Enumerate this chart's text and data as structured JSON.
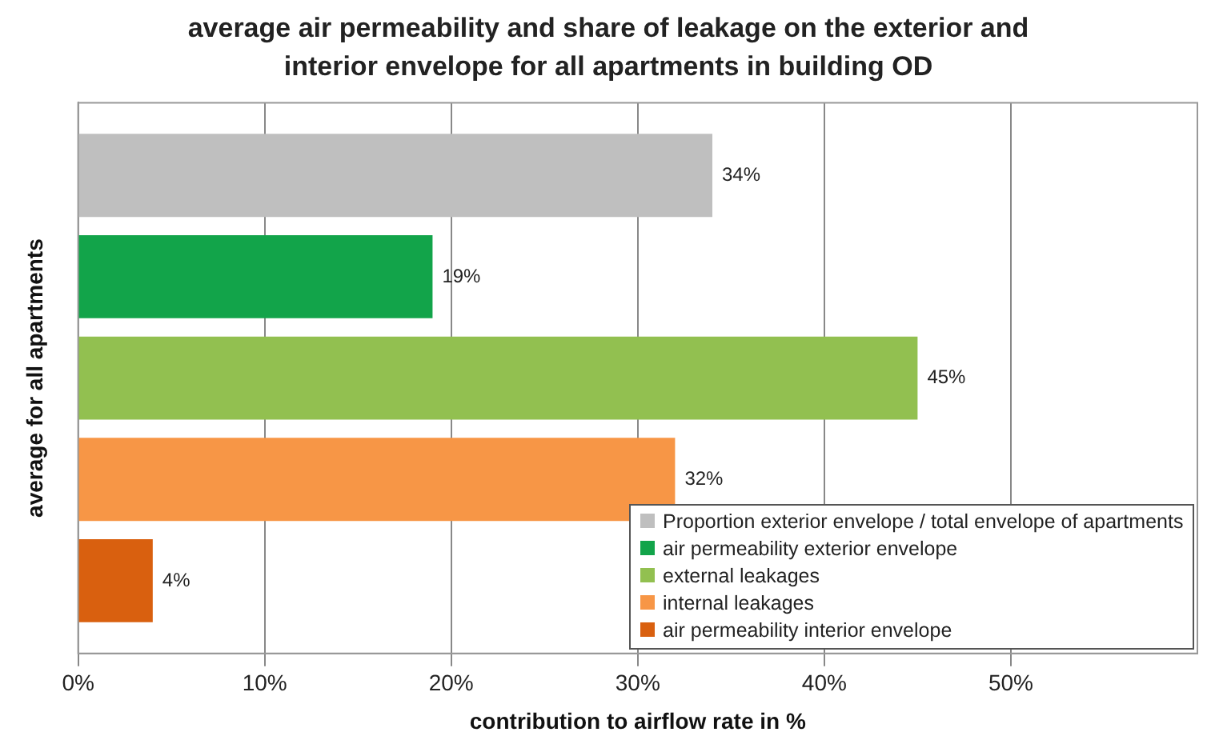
{
  "chart_data": {
    "type": "bar",
    "orientation": "horizontal",
    "title": "average air permeability and share of leakage on the exterior and interior envelope for all apartments in building OD",
    "xlabel": "contribution to airflow rate in %",
    "ylabel": "average for all apartments",
    "categories": [
      null
    ],
    "series": [
      {
        "name": "Proportion exterior envelope / total envelope of apartments",
        "color": "#bfbfbf",
        "values": [
          34
        ],
        "value_labels": [
          "34%"
        ]
      },
      {
        "name": "air permeability exterior envelope",
        "color": "#12a44a",
        "values": [
          19
        ],
        "value_labels": [
          "19%"
        ]
      },
      {
        "name": "external leakages",
        "color": "#92c050",
        "values": [
          45
        ],
        "value_labels": [
          "45%"
        ]
      },
      {
        "name": "internal leakages",
        "color": "#f79646",
        "values": [
          32
        ],
        "value_labels": [
          "32%"
        ]
      },
      {
        "name": "air permeability interior envelope",
        "color": "#d9600f",
        "values": [
          4
        ],
        "value_labels": [
          "4%"
        ]
      }
    ],
    "xlim": [
      0,
      60
    ],
    "xticks": [
      {
        "value": 0,
        "label": "0%"
      },
      {
        "value": 10,
        "label": "10%"
      },
      {
        "value": 20,
        "label": "20%"
      },
      {
        "value": 30,
        "label": "30%"
      },
      {
        "value": 40,
        "label": "40%"
      },
      {
        "value": 50,
        "label": "50%"
      }
    ],
    "grid": "x",
    "legend": "bottom right"
  }
}
